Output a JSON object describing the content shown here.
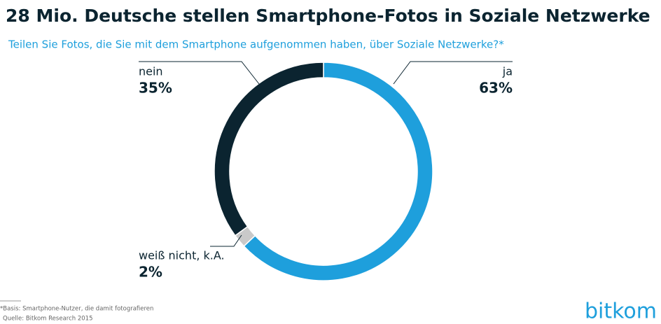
{
  "chart_data": {
    "type": "donut",
    "title": "28 Mio. Deutsche stellen Smartphone-Fotos in Soziale Netzwerke",
    "subtitle": "Teilen Sie Fotos, die Sie mit dem Smartphone aufgenommen haben, über Soziale Netzwerke?*",
    "categories": [
      "ja",
      "weiß nicht, k.A.",
      "nein"
    ],
    "values": [
      63,
      2,
      35
    ],
    "value_labels": [
      "63%",
      "2%",
      "35%"
    ],
    "colors": [
      "#1e9fdc",
      "#c9c9c9",
      "#0b2430"
    ],
    "notes": [
      "*Basis: Smartphone-Nutzer, die damit fotografieren",
      "Quelle: Bitkom Research 2015"
    ],
    "logo": "bitkom"
  }
}
